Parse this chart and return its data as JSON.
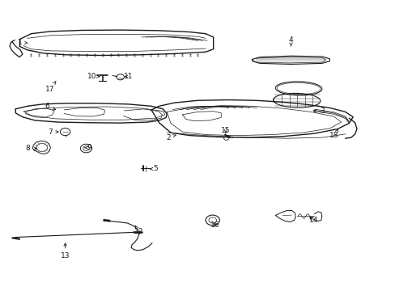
{
  "background_color": "#ffffff",
  "line_color": "#1a1a1a",
  "text_color": "#1a1a1a",
  "fig_width": 4.89,
  "fig_height": 3.6,
  "dpi": 100,
  "label_positions": {
    "1": [
      0.042,
      0.862,
      0.068,
      0.858
    ],
    "2": [
      0.425,
      0.528,
      0.45,
      0.54
    ],
    "3": [
      0.82,
      0.62,
      0.79,
      0.622
    ],
    "4": [
      0.74,
      0.87,
      0.74,
      0.848
    ],
    "5": [
      0.39,
      0.418,
      0.375,
      0.418
    ],
    "6": [
      0.112,
      0.638,
      0.14,
      0.622
    ],
    "7": [
      0.12,
      0.548,
      0.148,
      0.548
    ],
    "8": [
      0.062,
      0.49,
      0.092,
      0.49
    ],
    "9": [
      0.22,
      0.492,
      0.208,
      0.492
    ],
    "10": [
      0.228,
      0.742,
      0.248,
      0.742
    ],
    "11": [
      0.322,
      0.742,
      0.305,
      0.742
    ],
    "12": [
      0.348,
      0.198,
      0.338,
      0.22
    ],
    "13": [
      0.158,
      0.112,
      0.158,
      0.168
    ],
    "14": [
      0.798,
      0.238,
      0.782,
      0.252
    ],
    "15": [
      0.572,
      0.552,
      0.572,
      0.535
    ],
    "16": [
      0.545,
      0.22,
      0.538,
      0.235
    ],
    "17": [
      0.118,
      0.698,
      0.138,
      0.732
    ],
    "18": [
      0.852,
      0.535,
      0.862,
      0.558
    ]
  }
}
